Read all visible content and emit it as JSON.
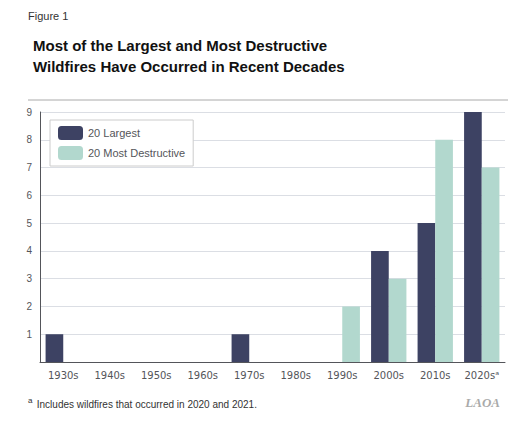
{
  "chart_data": {
    "type": "bar",
    "title": "Most of the Largest and Most Destructive\nWildfires Have Occurred in Recent Decades",
    "categories": [
      "1930s",
      "1940s",
      "1950s",
      "1960s",
      "1970s",
      "1980s",
      "1990s",
      "2000s",
      "2010s",
      "2020sᵃ"
    ],
    "series": [
      {
        "name": "20 Largest",
        "color": "#3d4263",
        "values": [
          1,
          0,
          0,
          0,
          1,
          0,
          0,
          4,
          5,
          9
        ]
      },
      {
        "name": "20 Most Destructive",
        "color": "#b2d8ce",
        "values": [
          0,
          0,
          0,
          0,
          0,
          0,
          2,
          3,
          8,
          7
        ]
      }
    ],
    "ylim": [
      0,
      9
    ],
    "yticks": [
      1,
      2,
      3,
      4,
      5,
      6,
      7,
      8,
      9
    ],
    "grid": true,
    "legend": "upper left",
    "annotations": [
      "Figure 1",
      "a",
      " Includes wildfires that occurred in 2020 and 2021.",
      "LAOA"
    ]
  }
}
